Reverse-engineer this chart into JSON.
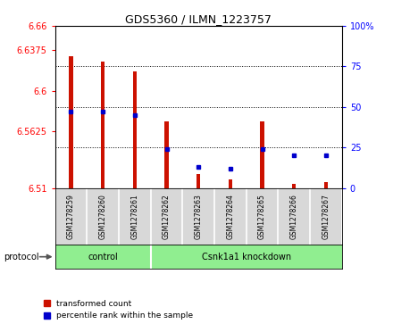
{
  "title": "GDS5360 / ILMN_1223757",
  "samples": [
    "GSM1278259",
    "GSM1278260",
    "GSM1278261",
    "GSM1278262",
    "GSM1278263",
    "GSM1278264",
    "GSM1278265",
    "GSM1278266",
    "GSM1278267"
  ],
  "transformed_counts": [
    6.632,
    6.627,
    6.618,
    6.572,
    6.523,
    6.518,
    6.572,
    6.514,
    6.515
  ],
  "percentile_ranks": [
    47,
    47,
    45,
    24,
    13,
    12,
    24,
    20,
    20
  ],
  "ylim_left": [
    6.51,
    6.66
  ],
  "ylim_right": [
    0,
    100
  ],
  "yticks_left": [
    6.51,
    6.5625,
    6.6,
    6.6375,
    6.66
  ],
  "yticks_right": [
    0,
    25,
    50,
    75,
    100
  ],
  "bar_color": "#cc1100",
  "dot_color": "#0000cc",
  "base_value": 6.51,
  "ctrl_count": 3,
  "group_labels": [
    "control",
    "Csnk1a1 knockdown"
  ],
  "group_color": "#90ee90",
  "legend_labels": [
    "transformed count",
    "percentile rank within the sample"
  ],
  "protocol_label": "protocol"
}
